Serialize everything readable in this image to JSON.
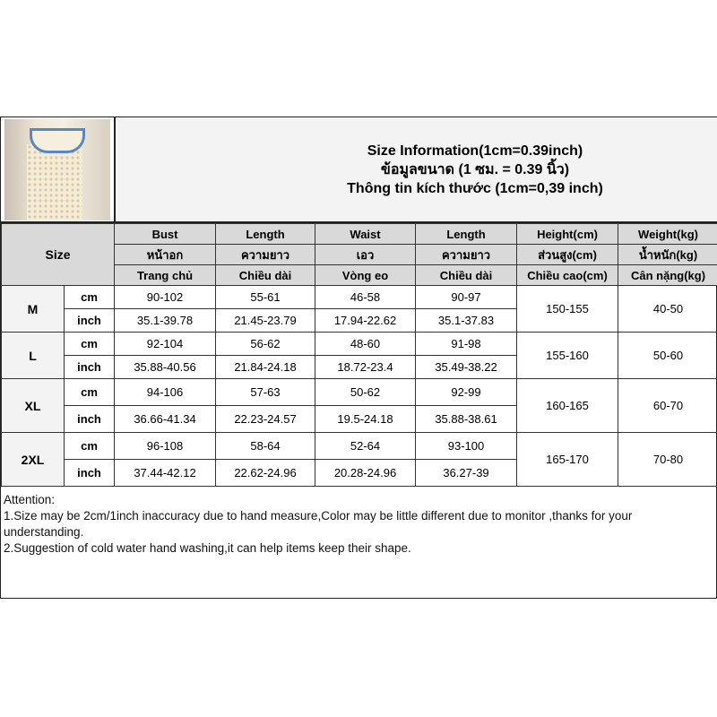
{
  "title": {
    "line1": "Size Information(1cm=0.39inch)",
    "line2": "ข้อมูลขนาด (1 ซม. = 0.39 นิ้ว)",
    "line3": "Thông tin kích thước (1cm=0,39 inch)"
  },
  "size_label": "Size",
  "headers": [
    [
      "Bust",
      "หน้าอก",
      "Trang chủ"
    ],
    [
      "Length",
      "ความยาว",
      "Chiều dài"
    ],
    [
      "Waist",
      "เอว",
      "Vòng eo"
    ],
    [
      "Length",
      "ความยาว",
      "Chiều dài"
    ],
    [
      "Height(cm)",
      "ส่วนสูง(cm)",
      "Chiều cao(cm)"
    ],
    [
      "Weight(kg)",
      "น้ำหนัก(kg)",
      "Cân nặng(kg)"
    ]
  ],
  "rows": [
    {
      "size": "M",
      "cm": [
        "90-102",
        "55-61",
        "46-58",
        "90-97"
      ],
      "inch": [
        "35.1-39.78",
        "21.45-23.79",
        "17.94-22.62",
        "35.1-37.83"
      ],
      "height": "150-155",
      "weight": "40-50"
    },
    {
      "size": "L",
      "cm": [
        "92-104",
        "56-62",
        "48-60",
        "91-98"
      ],
      "inch": [
        "35.88-40.56",
        "21.84-24.18",
        "18.72-23.4",
        "35.49-38.22"
      ],
      "height": "155-160",
      "weight": "50-60"
    },
    {
      "size": "XL",
      "cm": [
        "94-106",
        "57-63",
        "50-62",
        "92-99"
      ],
      "inch": [
        "36.66-41.34",
        "22.23-24.57",
        "19.5-24.18",
        "35.88-38.61"
      ],
      "height": "160-165",
      "weight": "60-70"
    },
    {
      "size": "2XL",
      "cm": [
        "96-108",
        "58-64",
        "52-64",
        "93-100"
      ],
      "inch": [
        "37.44-42.12",
        "22.62-24.96",
        "20.28-24.96",
        "36.27-39"
      ],
      "height": "165-170",
      "weight": "70-80"
    }
  ],
  "units": {
    "cm": "cm",
    "inch": "inch"
  },
  "attention": [
    "Attention:",
    "1.Size may be 2cm/1inch inaccuracy due to hand measure,Color may be little different due to monitor ,thanks for your understanding.",
    "2.Suggestion of cold water hand washing,it can help items keep their shape."
  ]
}
